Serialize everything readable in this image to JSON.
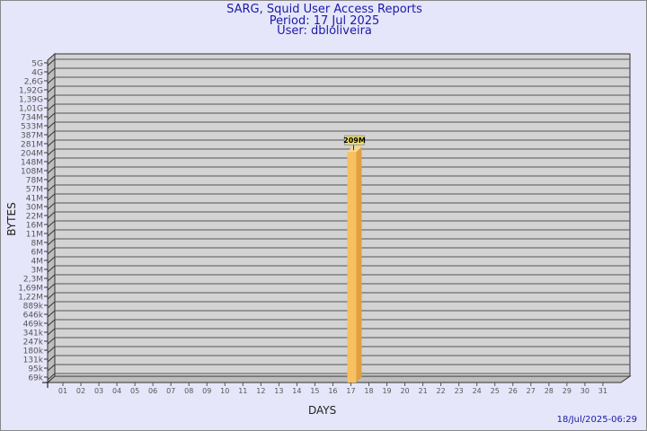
{
  "chart_data": {
    "type": "bar",
    "title": "SARG, Squid User Access Reports",
    "subtitle_period": "Period: 17 Jul 2025",
    "subtitle_user": "User: dbloliveira",
    "xlabel": "DAYS",
    "ylabel": "BYTES",
    "yscale": "log",
    "grid": true,
    "categories": [
      "01",
      "02",
      "03",
      "04",
      "05",
      "06",
      "07",
      "08",
      "09",
      "10",
      "11",
      "12",
      "13",
      "14",
      "15",
      "16",
      "17",
      "18",
      "19",
      "20",
      "21",
      "22",
      "23",
      "24",
      "25",
      "26",
      "27",
      "28",
      "29",
      "30",
      "31"
    ],
    "y_tick_labels": [
      "5G",
      "4G",
      "2,6G",
      "1,92G",
      "1,39G",
      "1,01G",
      "734M",
      "533M",
      "387M",
      "281M",
      "204M",
      "148M",
      "108M",
      "78M",
      "57M",
      "41M",
      "30M",
      "22M",
      "16M",
      "11M",
      "8M",
      "6M",
      "4M",
      "3M",
      "2,3M",
      "1,69M",
      "1,22M",
      "889k",
      "646k",
      "469k",
      "341k",
      "247k",
      "180k",
      "131k",
      "95k",
      "69k"
    ],
    "y_tick_values": [
      5000000000.0,
      4000000000.0,
      2600000000.0,
      1920000000.0,
      1390000000.0,
      1010000000.0,
      734000000.0,
      533000000.0,
      387000000.0,
      281000000.0,
      204000000.0,
      148000000.0,
      108000000.0,
      78000000.0,
      57000000.0,
      41000000.0,
      30000000.0,
      22000000.0,
      16000000.0,
      11000000.0,
      8000000.0,
      6000000.0,
      4000000.0,
      3000000.0,
      2300000.0,
      1690000.0,
      1220000.0,
      889000.0,
      646000.0,
      469000.0,
      341000.0,
      247000.0,
      180000.0,
      131000.0,
      95000.0,
      69000.0
    ],
    "values": [
      null,
      null,
      null,
      null,
      null,
      null,
      null,
      null,
      null,
      null,
      null,
      null,
      null,
      null,
      null,
      null,
      209000000,
      null,
      null,
      null,
      null,
      null,
      null,
      null,
      null,
      null,
      null,
      null,
      null,
      null,
      null
    ],
    "data_labels": {
      "16": "209M"
    },
    "colors": {
      "bar": "#f8c060",
      "plot_bg": "#d3d3d3",
      "title": "#1a1aa6",
      "page_bg": "#e6e6fa"
    }
  },
  "footer": {
    "timestamp": "18/Jul/2025-06:29"
  }
}
